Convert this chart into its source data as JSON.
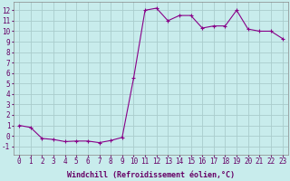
{
  "x": [
    0,
    1,
    2,
    3,
    4,
    5,
    6,
    7,
    8,
    9,
    10,
    11,
    12,
    13,
    14,
    15,
    16,
    17,
    18,
    19,
    20,
    21,
    22,
    23
  ],
  "y": [
    1.0,
    0.8,
    -0.25,
    -0.35,
    -0.55,
    -0.5,
    -0.5,
    -0.65,
    -0.45,
    -0.15,
    5.5,
    12.0,
    12.2,
    11.0,
    11.5,
    11.5,
    10.3,
    10.5,
    10.5,
    12.0,
    10.2,
    10.0,
    10.0,
    9.3
  ],
  "line_color": "#880088",
  "marker": "+",
  "marker_size": 3.5,
  "linewidth": 0.8,
  "xlabel": "Windchill (Refroidissement éolien,°C)",
  "xlabel_fontsize": 6,
  "ylabel_ticks": [
    -1,
    0,
    1,
    2,
    3,
    4,
    5,
    6,
    7,
    8,
    9,
    10,
    11,
    12
  ],
  "xlim": [
    -0.5,
    23.5
  ],
  "ylim": [
    -1.8,
    12.8
  ],
  "bg_color": "#c8ecec",
  "grid_color": "#aacccc",
  "tick_fontsize": 5.5,
  "tick_color": "#660066"
}
